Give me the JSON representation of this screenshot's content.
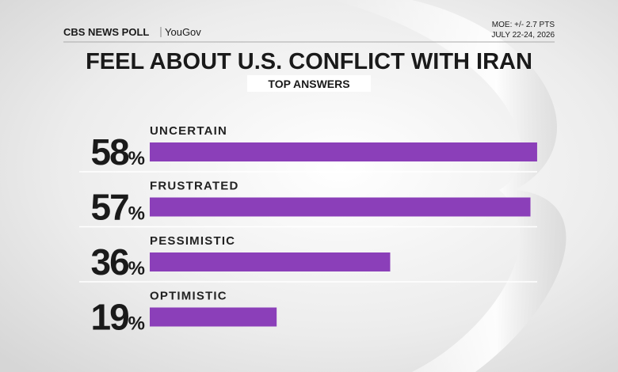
{
  "brand": {
    "name": "CBS NEWS POLL",
    "partner": "YouGov"
  },
  "notes": {
    "moe": "MOE: +/- 2.7 PTS",
    "dates": "JULY 22-24, 2026"
  },
  "chart_data": {
    "type": "hbar",
    "title": "FEEL ABOUT U.S. CONFLICT WITH IRAN",
    "subtitle": "TOP ANSWERS",
    "categories": [
      "UNCERTAIN",
      "FRUSTRATED",
      "PESSIMISTIC",
      "OPTIMISTIC"
    ],
    "values": [
      58,
      57,
      36,
      19
    ],
    "value_labels": [
      "58%",
      "57%",
      "36%",
      "19%"
    ],
    "color": "#8b3fb9"
  }
}
